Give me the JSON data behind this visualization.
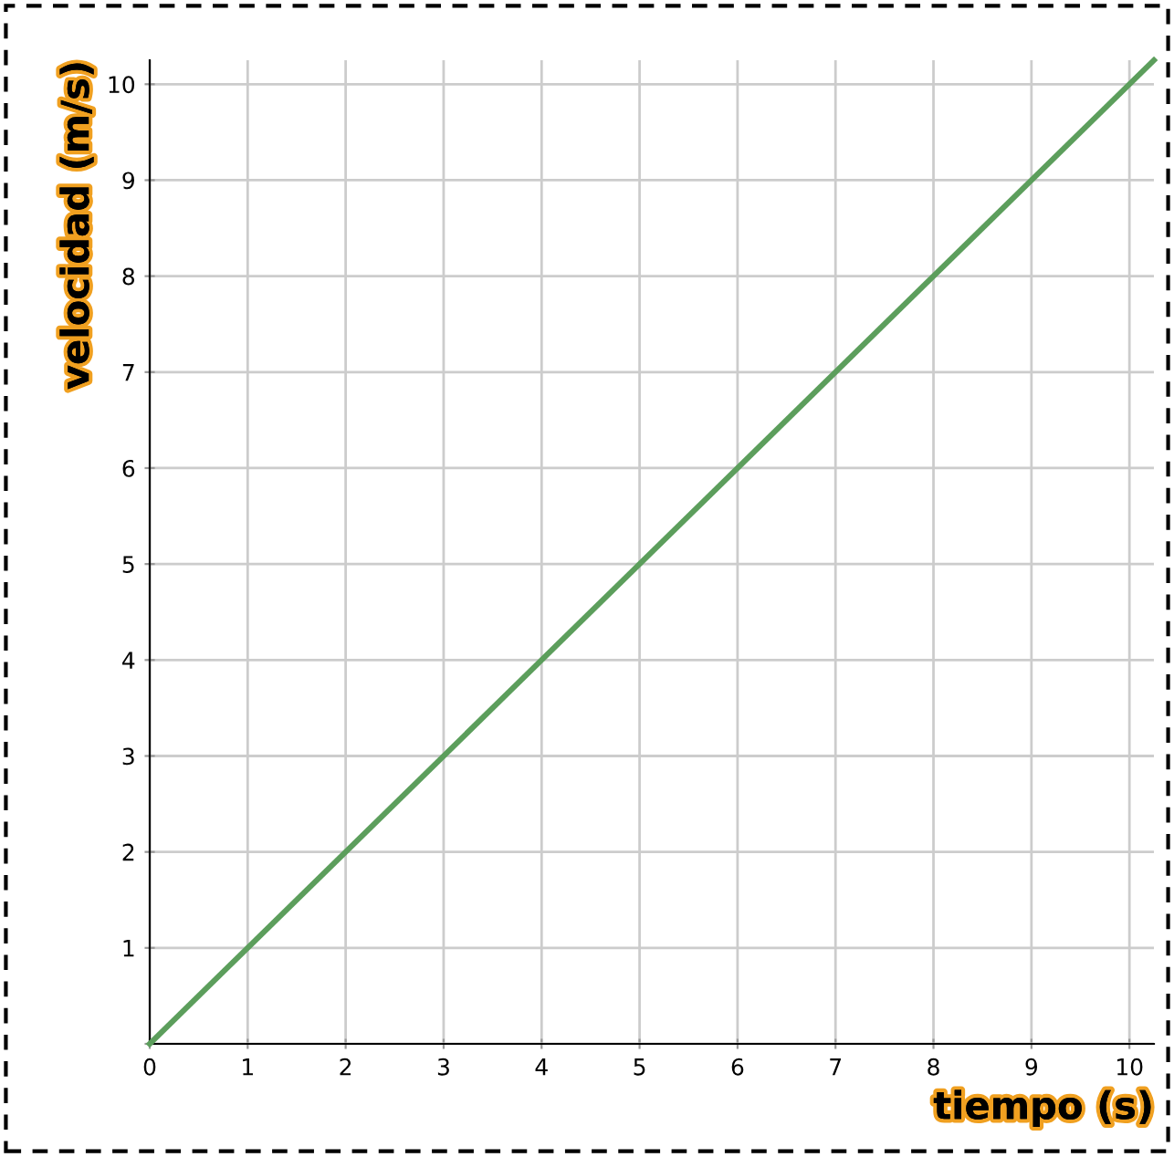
{
  "chart_data": {
    "type": "line",
    "xlabel": "tiempo (s)",
    "ylabel": "velocidad (m/s)",
    "x": [
      0,
      10.25
    ],
    "series": [
      {
        "color": "#5c9e5c",
        "values": [
          0,
          10.25
        ]
      }
    ],
    "xlim": [
      0,
      10.25
    ],
    "ylim": [
      0,
      10.25
    ],
    "xticks": [
      0,
      1,
      2,
      3,
      4,
      5,
      6,
      7,
      8,
      9,
      10
    ],
    "yticks": [
      {
        "value": 0,
        "label": null
      },
      1,
      2,
      3,
      4,
      5,
      6,
      7,
      8,
      9,
      10
    ],
    "grid": true,
    "legend": false,
    "marker": "none",
    "line_style": "solid"
  }
}
